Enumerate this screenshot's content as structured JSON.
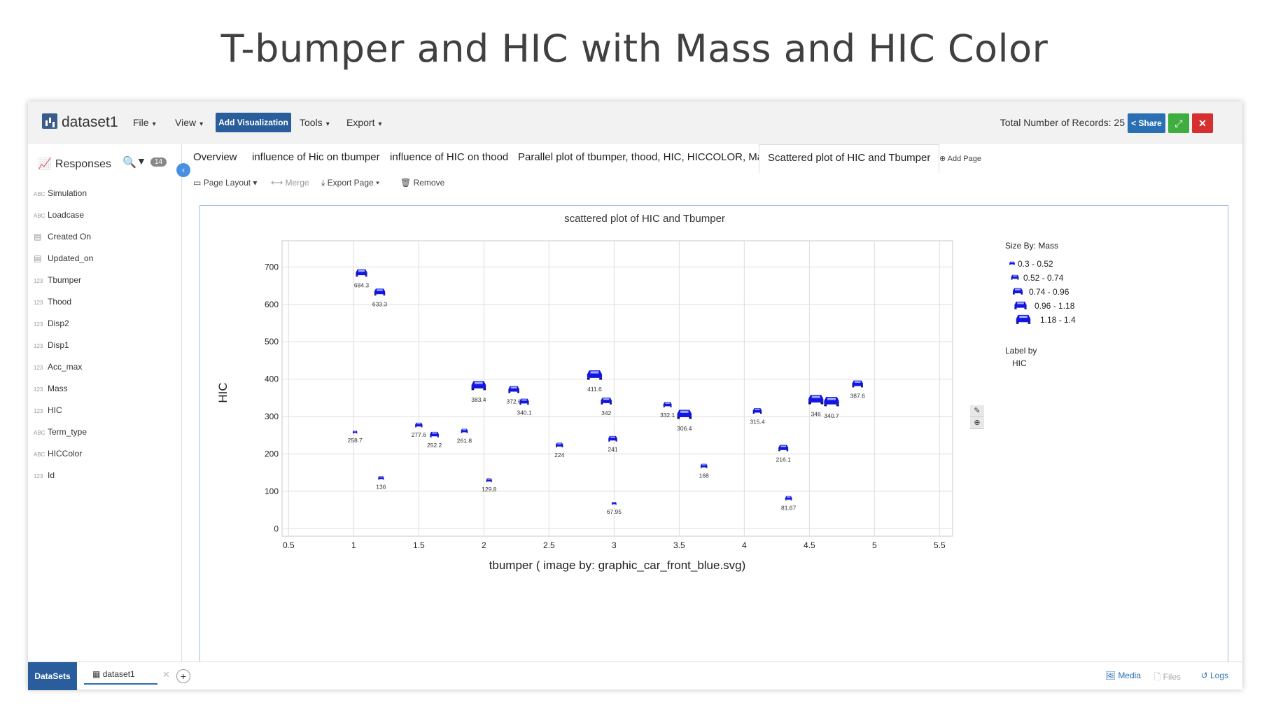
{
  "slide": {
    "title": "T-bumper and HIC with Mass and HIC Color"
  },
  "topbar": {
    "app_name": "dataset1",
    "menus": [
      {
        "label": "File",
        "caret": "▾"
      },
      {
        "label": "View",
        "caret": "▾"
      },
      {
        "label": "Tools",
        "caret": "▾"
      },
      {
        "label": "Export",
        "caret": "▾"
      }
    ],
    "add_visualization": "Add Visualization",
    "records_label": "Total Number of Records: 25",
    "share_label": "Share",
    "accent_color": "#2a5d9b"
  },
  "sidebar": {
    "title": "Responses",
    "filter_count": "14",
    "items": [
      {
        "type": "ABC",
        "label": "Simulation"
      },
      {
        "type": "ABC",
        "label": "Loadcase"
      },
      {
        "type": "date",
        "label": "Created On"
      },
      {
        "type": "date",
        "label": "Updated_on"
      },
      {
        "type": "123",
        "label": "Tbumper"
      },
      {
        "type": "123",
        "label": "Thood"
      },
      {
        "type": "123",
        "label": "Disp2"
      },
      {
        "type": "123",
        "label": "Disp1"
      },
      {
        "type": "123",
        "label": "Acc_max"
      },
      {
        "type": "123",
        "label": "Mass"
      },
      {
        "type": "123",
        "label": "HIC"
      },
      {
        "type": "ABC",
        "label": "Term_type"
      },
      {
        "type": "ABC",
        "label": "HICColor"
      },
      {
        "type": "123",
        "label": "Id"
      }
    ]
  },
  "tabs": {
    "items": [
      "Overview",
      "influence of Hic on tbumper",
      "influence of HIC on thood",
      "Parallel plot of tbumper, thood, HIC, HICCOLOR, Mass",
      "Scattered plot of HIC and Tbumper"
    ],
    "active": "Scattered plot of HIC and Tbumper",
    "add_page": "Add Page"
  },
  "toolbar": {
    "page_layout": "Page Layout",
    "merge": "Merge",
    "export_page": "Export Page",
    "remove": "Remove"
  },
  "chart_data": {
    "type": "scatter",
    "title": "scattered plot of HIC and Tbumper",
    "xlabel": "tbumper ( image by: graphic_car_front_blue.svg)",
    "ylabel": "HIC",
    "xlim": [
      0.45,
      5.6
    ],
    "ylim": [
      -20,
      770
    ],
    "xticks": [
      0.5,
      1,
      1.5,
      2,
      2.5,
      3,
      3.5,
      4,
      4.5,
      5,
      5.5
    ],
    "yticks": [
      0,
      100,
      200,
      300,
      400,
      500,
      600,
      700
    ],
    "grid": true,
    "marker_color": "#1515e0",
    "points": [
      {
        "x": 1.06,
        "y": 684.3,
        "label": "684.3",
        "mass": 1.0
      },
      {
        "x": 1.2,
        "y": 633.3,
        "label": "633.3",
        "mass": 0.95
      },
      {
        "x": 1.01,
        "y": 258.7,
        "label": "258.7",
        "mass": 0.33
      },
      {
        "x": 1.21,
        "y": 136,
        "label": "136",
        "mass": 0.45
      },
      {
        "x": 1.5,
        "y": 277.6,
        "label": "277.6",
        "mass": 0.6
      },
      {
        "x": 1.62,
        "y": 252.2,
        "label": "252.2",
        "mass": 0.75
      },
      {
        "x": 1.85,
        "y": 261.8,
        "label": "261.8",
        "mass": 0.55
      },
      {
        "x": 1.96,
        "y": 383.4,
        "label": "383.4",
        "mass": 1.3
      },
      {
        "x": 2.04,
        "y": 129.8,
        "label": "129.8",
        "mass": 0.45
      },
      {
        "x": 2.23,
        "y": 372.6,
        "label": "372.6",
        "mass": 0.95
      },
      {
        "x": 2.31,
        "y": 340.1,
        "label": "340.1",
        "mass": 0.8
      },
      {
        "x": 2.58,
        "y": 224,
        "label": "224",
        "mass": 0.6
      },
      {
        "x": 2.85,
        "y": 411.6,
        "label": "411.6",
        "mass": 1.35
      },
      {
        "x": 2.94,
        "y": 342,
        "label": "342",
        "mass": 0.95
      },
      {
        "x": 2.99,
        "y": 241,
        "label": "241",
        "mass": 0.75
      },
      {
        "x": 3.0,
        "y": 67.95,
        "label": "67.95",
        "mass": 0.35
      },
      {
        "x": 3.41,
        "y": 332.1,
        "label": "332.1",
        "mass": 0.7
      },
      {
        "x": 3.54,
        "y": 306.4,
        "label": "306.4",
        "mass": 1.3
      },
      {
        "x": 3.69,
        "y": 168,
        "label": "168",
        "mass": 0.55
      },
      {
        "x": 4.1,
        "y": 315.4,
        "label": "315.4",
        "mass": 0.75
      },
      {
        "x": 4.3,
        "y": 216.1,
        "label": "216.1",
        "mass": 0.85
      },
      {
        "x": 4.34,
        "y": 81.67,
        "label": "81.67",
        "mass": 0.55
      },
      {
        "x": 4.55,
        "y": 346,
        "label": "346",
        "mass": 1.35
      },
      {
        "x": 4.67,
        "y": 340.7,
        "label": "340.7",
        "mass": 1.35
      },
      {
        "x": 4.87,
        "y": 387.6,
        "label": "387.6",
        "mass": 0.95
      }
    ],
    "legend": {
      "size_title": "Size By: Mass",
      "size_bins": [
        "0.3 - 0.52",
        "0.52 - 0.74",
        "0.74 - 0.96",
        "0.96 - 1.18",
        "1.18 - 1.4"
      ],
      "label_title": "Label by",
      "label_value": "HIC",
      "placement": "right"
    }
  },
  "footer": {
    "datasets": "DataSets",
    "tab": "dataset1",
    "media": "Media",
    "files": "Files",
    "logs": "Logs"
  }
}
